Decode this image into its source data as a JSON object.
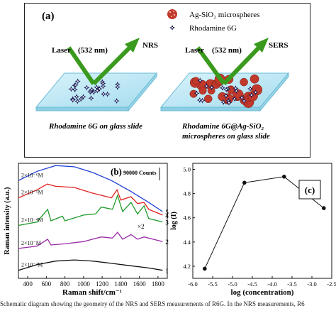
{
  "panel_a": {
    "label": "(a)",
    "legend": [
      {
        "text": "Ag-SiO₂ microspheres",
        "icon": "red-microsphere-icon"
      },
      {
        "text": "Rhodamine 6G",
        "icon": "rhodamine-star-icon"
      }
    ],
    "left_slide": {
      "laser": "Laser",
      "wavelength": "(532 nm)",
      "signal": "NRS",
      "caption": "Rhodamine 6G on glass slide"
    },
    "right_slide": {
      "laser": "Laser",
      "wavelength": "(532 nm)",
      "signal": "SERS",
      "caption_line1": "Rhodamine 6G@Ag-SiO₂",
      "caption_line2": "microspheres on glass slide"
    },
    "colors": {
      "slide": "#b8e6f3",
      "slide_edge": "#7fc9df",
      "arrow": "#3a9a1e",
      "star": "#1a1a55",
      "sphere": "#c0392b"
    }
  },
  "chart_data": [
    {
      "panel": "(b)",
      "type": "line",
      "xlabel": "Raman shift/cm⁻¹",
      "ylabel": "Raman intensity (a.u.)",
      "xlim": [
        300,
        1900
      ],
      "x_ticks": [
        400,
        600,
        800,
        1000,
        1200,
        1400,
        1600,
        1800
      ],
      "scale_bar": "90000 Counts",
      "marker": "×2",
      "series": [
        {
          "name": "5",
          "conc": "2×10⁻⁶M",
          "color": "#1f3fd6",
          "points": [
            [
              300,
              0.85
            ],
            [
              500,
              0.93
            ],
            [
              700,
              0.98
            ],
            [
              900,
              0.97
            ],
            [
              1100,
              0.92
            ],
            [
              1300,
              0.85
            ],
            [
              1500,
              0.76
            ],
            [
              1700,
              0.66
            ],
            [
              1850,
              0.58
            ]
          ]
        },
        {
          "name": "4",
          "conc": "2×10⁻⁵M",
          "color": "#e02020",
          "points": [
            [
              300,
              0.7
            ],
            [
              500,
              0.77
            ],
            [
              610,
              0.82
            ],
            [
              700,
              0.8
            ],
            [
              900,
              0.79
            ],
            [
              1100,
              0.74
            ],
            [
              1300,
              0.7
            ],
            [
              1360,
              0.77
            ],
            [
              1400,
              0.68
            ],
            [
              1510,
              0.71
            ],
            [
              1580,
              0.65
            ],
            [
              1650,
              0.66
            ],
            [
              1700,
              0.6
            ],
            [
              1850,
              0.55
            ]
          ]
        },
        {
          "name": "3",
          "conc": "2×10⁻⁴M",
          "color": "#1f9a2a",
          "points": [
            [
              300,
              0.46
            ],
            [
              500,
              0.49
            ],
            [
              614,
              0.6
            ],
            [
              650,
              0.5
            ],
            [
              774,
              0.54
            ],
            [
              800,
              0.5
            ],
            [
              1000,
              0.55
            ],
            [
              1130,
              0.56
            ],
            [
              1190,
              0.62
            ],
            [
              1310,
              0.6
            ],
            [
              1365,
              0.72
            ],
            [
              1420,
              0.58
            ],
            [
              1510,
              0.66
            ],
            [
              1580,
              0.56
            ],
            [
              1650,
              0.63
            ],
            [
              1700,
              0.52
            ],
            [
              1850,
              0.49
            ]
          ]
        },
        {
          "name": "2",
          "conc": "2×10⁻⁳M",
          "color": "#9a2aa8",
          "points": [
            [
              300,
              0.26
            ],
            [
              500,
              0.28
            ],
            [
              614,
              0.34
            ],
            [
              650,
              0.29
            ],
            [
              800,
              0.3
            ],
            [
              1000,
              0.32
            ],
            [
              1190,
              0.36
            ],
            [
              1310,
              0.35
            ],
            [
              1365,
              0.4
            ],
            [
              1420,
              0.34
            ],
            [
              1510,
              0.38
            ],
            [
              1580,
              0.34
            ],
            [
              1650,
              0.36
            ],
            [
              1850,
              0.32
            ]
          ]
        },
        {
          "name": "1",
          "conc": "2×10⁻²M",
          "color": "#111111",
          "points": [
            [
              300,
              0.07
            ],
            [
              500,
              0.12
            ],
            [
              700,
              0.15
            ],
            [
              900,
              0.16
            ],
            [
              1100,
              0.15
            ],
            [
              1300,
              0.13
            ],
            [
              1500,
              0.11
            ],
            [
              1700,
              0.09
            ],
            [
              1850,
              0.07
            ]
          ]
        }
      ]
    },
    {
      "panel": "(c)",
      "type": "line",
      "xlabel": "log (concentration)",
      "ylabel": "log (I)",
      "xlim": [
        -6.0,
        -2.5
      ],
      "ylim": [
        4.1,
        5.05
      ],
      "x_ticks": [
        -6.0,
        -5.5,
        -5.0,
        -4.5,
        -4.0,
        -3.5,
        -3.0,
        -2.5
      ],
      "y_ticks": [
        4.2,
        4.4,
        4.6,
        4.8,
        5.0
      ],
      "series": [
        {
          "x": [
            -5.7,
            -4.7,
            -3.7,
            -2.7
          ],
          "y": [
            4.18,
            4.89,
            4.94,
            4.68
          ]
        }
      ]
    }
  ],
  "caption": "Schematic diagram showing the geometry of the NRS and SERS measurements of R6G. In the NRS measurements, R6"
}
